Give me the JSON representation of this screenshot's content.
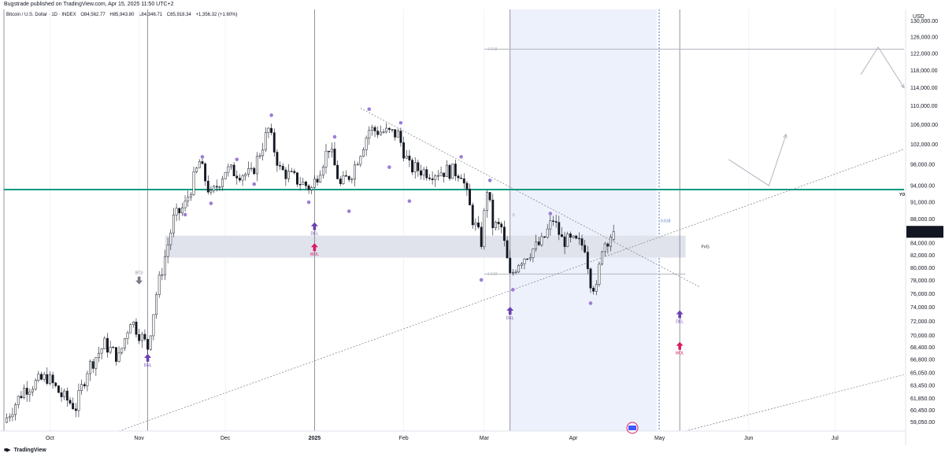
{
  "header": {
    "published": "Bugstrade published on TradingView.com, Apr 15, 2025 11:50 UTC+2"
  },
  "legend": {
    "symbol": "Bitcoin / U.S. Dollar · 1D · INDEX",
    "open": "O84,562.77",
    "high": "H85,943.80",
    "low": "L84,346.71",
    "close": "C85,918.34",
    "change": "+1,356.32 (+1.60%)"
  },
  "footer": {
    "brand": "TradingView"
  },
  "colors": {
    "up": "#ffffff",
    "down": "#131722",
    "candle_border": "#131722",
    "yo_line": "#089981",
    "fvg_zone": "#e0e3eb",
    "projection_box": "#edf1fb",
    "projection_line": "#4f83c7",
    "del_arrow": "#6c3fb3",
    "wol_arrow": "#d81b60",
    "swing_dot": "#9c7ed6",
    "bst_arrow": "#787b86",
    "dashed_line": "#787b86"
  },
  "chart_data": {
    "type": "candlestick",
    "symbol": "Bitcoin / U.S. Dollar",
    "interval": "1D",
    "y_axis": {
      "unit": "USD",
      "scale": "log",
      "ylim": [
        58000,
        133000
      ],
      "tick_labels": [
        {
          "value": 130000,
          "label": "130,000.00"
        },
        {
          "value": 126000,
          "label": "126,000.00"
        },
        {
          "value": 122000,
          "label": "122,000.00"
        },
        {
          "value": 118000,
          "label": "118,000.00"
        },
        {
          "value": 114000,
          "label": "114,000.00"
        },
        {
          "value": 110000,
          "label": "110,000.00"
        },
        {
          "value": 106000,
          "label": "106,000.00"
        },
        {
          "value": 102000,
          "label": "102,000.00"
        },
        {
          "value": 98000,
          "label": "98,000.00"
        },
        {
          "value": 94000,
          "label": "94,000.00"
        },
        {
          "value": 91000,
          "label": "91,000.00"
        },
        {
          "value": 88000,
          "label": "88,000.00"
        },
        {
          "value": 84000,
          "label": "84,000.00"
        },
        {
          "value": 82000,
          "label": "82,000.00"
        },
        {
          "value": 80000,
          "label": "80,000.00"
        },
        {
          "value": 78000,
          "label": "78,000.00"
        },
        {
          "value": 76000,
          "label": "76,000.00"
        },
        {
          "value": 74000,
          "label": "74,000.00"
        },
        {
          "value": 72000,
          "label": "72,000.00"
        },
        {
          "value": 70000,
          "label": "70,000.00"
        },
        {
          "value": 68400,
          "label": "68,400.00"
        },
        {
          "value": 66800,
          "label": "66,800.00"
        },
        {
          "value": 65050,
          "label": "65,050.00"
        },
        {
          "value": 63450,
          "label": "63,450.00"
        },
        {
          "value": 61850,
          "label": "61,850.00"
        },
        {
          "value": 60450,
          "label": "60,450.00"
        },
        {
          "value": 59050,
          "label": "59,050.00"
        }
      ]
    },
    "x_axis": {
      "xlim": [
        "2024-09-15",
        "2025-07-25"
      ],
      "tick_labels": [
        {
          "date": "2024-10-01",
          "label": "Oct",
          "bold": false
        },
        {
          "date": "2024-11-01",
          "label": "Nov",
          "bold": false
        },
        {
          "date": "2024-12-01",
          "label": "Dec",
          "bold": false
        },
        {
          "date": "2025-01-01",
          "label": "2025",
          "bold": true
        },
        {
          "date": "2025-02-01",
          "label": "Feb",
          "bold": false
        },
        {
          "date": "2025-03-01",
          "label": "Mar",
          "bold": false
        },
        {
          "date": "2025-04-01",
          "label": "Apr",
          "bold": false
        },
        {
          "date": "2025-05-01",
          "label": "May",
          "bold": false
        },
        {
          "date": "2025-06-01",
          "label": "Jun",
          "bold": false
        },
        {
          "date": "2025-07-01",
          "label": "Jul",
          "bold": false
        }
      ]
    },
    "price_anchors": [
      {
        "date": "2024-09-15",
        "price": 59000
      },
      {
        "date": "2024-09-22",
        "price": 63000
      },
      {
        "date": "2024-09-30",
        "price": 64500
      },
      {
        "date": "2024-10-05",
        "price": 62200
      },
      {
        "date": "2024-10-10",
        "price": 60800
      },
      {
        "date": "2024-10-14",
        "price": 65500
      },
      {
        "date": "2024-10-20",
        "price": 68800
      },
      {
        "date": "2024-10-25",
        "price": 67000
      },
      {
        "date": "2024-10-29",
        "price": 72300
      },
      {
        "date": "2024-11-04",
        "price": 68400
      },
      {
        "date": "2024-11-07",
        "price": 76000
      },
      {
        "date": "2024-11-13",
        "price": 88000
      },
      {
        "date": "2024-11-17",
        "price": 90500
      },
      {
        "date": "2024-11-22",
        "price": 98500
      },
      {
        "date": "2024-11-26",
        "price": 92000
      },
      {
        "date": "2024-12-01",
        "price": 97000
      },
      {
        "date": "2024-12-05",
        "price": 96500
      },
      {
        "date": "2024-12-10",
        "price": 96000
      },
      {
        "date": "2024-12-16",
        "price": 105000
      },
      {
        "date": "2024-12-20",
        "price": 97000
      },
      {
        "date": "2024-12-26",
        "price": 95000
      },
      {
        "date": "2024-12-31",
        "price": 93500
      },
      {
        "date": "2025-01-06",
        "price": 101500
      },
      {
        "date": "2025-01-10",
        "price": 94000
      },
      {
        "date": "2025-01-14",
        "price": 96500
      },
      {
        "date": "2025-01-20",
        "price": 105000
      },
      {
        "date": "2025-01-25",
        "price": 104500
      },
      {
        "date": "2025-01-30",
        "price": 104000
      },
      {
        "date": "2025-02-03",
        "price": 97500
      },
      {
        "date": "2025-02-10",
        "price": 96500
      },
      {
        "date": "2025-02-16",
        "price": 96800
      },
      {
        "date": "2025-02-21",
        "price": 96500
      },
      {
        "date": "2025-02-25",
        "price": 88000
      },
      {
        "date": "2025-02-28",
        "price": 84200
      },
      {
        "date": "2025-03-02",
        "price": 93500
      },
      {
        "date": "2025-03-04",
        "price": 87000
      },
      {
        "date": "2025-03-07",
        "price": 86500
      },
      {
        "date": "2025-03-10",
        "price": 78500
      },
      {
        "date": "2025-03-13",
        "price": 81000
      },
      {
        "date": "2025-03-18",
        "price": 83000
      },
      {
        "date": "2025-03-21",
        "price": 84000
      },
      {
        "date": "2025-03-25",
        "price": 88000
      },
      {
        "date": "2025-03-28",
        "price": 84500
      },
      {
        "date": "2025-04-02",
        "price": 84000
      },
      {
        "date": "2025-04-05",
        "price": 83500
      },
      {
        "date": "2025-04-07",
        "price": 78000
      },
      {
        "date": "2025-04-09",
        "price": 76500
      },
      {
        "date": "2025-04-11",
        "price": 83500
      },
      {
        "date": "2025-04-15",
        "price": 85918
      }
    ],
    "last_price": {
      "label": "85,918.34",
      "countdown": "14:09:41",
      "value": 85918.34
    },
    "horizontal_levels": [
      {
        "name": "YO",
        "label": "YO",
        "value": 93300,
        "from": "2024-09-15",
        "to": "2025-07-25"
      },
      {
        "name": "upper-fib",
        "label": "1.618",
        "value": 123000,
        "from": "2025-03-01",
        "to": "2025-07-25"
      },
      {
        "name": "lower-fib",
        "label": "1.618",
        "value": 79000,
        "from": "2025-03-01",
        "to": "2025-05-10"
      }
    ],
    "zones": [
      {
        "name": "fvg",
        "label": "FVG",
        "from": "2024-11-10",
        "to": "2025-05-10",
        "top": 85200,
        "bottom": 81600
      }
    ],
    "projection_box": {
      "from": "2025-03-10",
      "to": "2025-04-30",
      "bottom": 58000,
      "top": 133000,
      "label": "0.618",
      "label_value": 87500,
      "zero_label": "0",
      "zero_value": 88500
    },
    "vertical_lines": [
      {
        "date": "2024-09-15",
        "color": "#787b86"
      },
      {
        "date": "2024-11-04",
        "color": "#787b86"
      },
      {
        "date": "2025-01-01",
        "color": "#787b86"
      },
      {
        "date": "2025-03-10",
        "color": "#787b86"
      },
      {
        "date": "2025-05-08",
        "color": "#787b86"
      }
    ],
    "trend_lines": [
      {
        "name": "rising-trendline",
        "from": {
          "date": "2024-10-25",
          "price": 58000
        },
        "to": {
          "date": "2025-07-25",
          "price": 101000
        }
      },
      {
        "name": "falling-trendline",
        "from": {
          "date": "2025-01-17",
          "price": 109500
        },
        "to": {
          "date": "2025-05-15",
          "price": 77000
        }
      },
      {
        "name": "lower-channel",
        "from": {
          "date": "2025-05-10",
          "price": 58000
        },
        "to": {
          "date": "2025-07-25",
          "price": 64800
        }
      }
    ],
    "scenario_paths": [
      {
        "name": "scenario-low",
        "points": [
          {
            "date": "2025-05-25",
            "price": 99000
          },
          {
            "date": "2025-06-08",
            "price": 94000
          },
          {
            "date": "2025-06-14",
            "price": 104000
          }
        ]
      },
      {
        "name": "scenario-high",
        "points": [
          {
            "date": "2025-07-10",
            "price": 117000
          },
          {
            "date": "2025-07-16",
            "price": 123500
          },
          {
            "date": "2025-07-25",
            "price": 114000
          }
        ]
      }
    ],
    "swing_points": [
      {
        "date": "2024-11-23",
        "price": 99500
      },
      {
        "date": "2024-11-17",
        "price": 88800
      },
      {
        "date": "2024-11-26",
        "price": 90800
      },
      {
        "date": "2024-12-05",
        "price": 99000
      },
      {
        "date": "2024-12-11",
        "price": 94300
      },
      {
        "date": "2024-12-17",
        "price": 108000
      },
      {
        "date": "2024-12-30",
        "price": 91000
      },
      {
        "date": "2025-01-08",
        "price": 103500
      },
      {
        "date": "2025-01-13",
        "price": 89400
      },
      {
        "date": "2025-01-20",
        "price": 109300
      },
      {
        "date": "2025-01-27",
        "price": 97500
      },
      {
        "date": "2025-01-31",
        "price": 106400
      },
      {
        "date": "2025-02-03",
        "price": 91200
      },
      {
        "date": "2025-02-21",
        "price": 99500
      },
      {
        "date": "2025-02-28",
        "price": 78100
      },
      {
        "date": "2025-03-03",
        "price": 95000
      },
      {
        "date": "2025-03-11",
        "price": 76600
      },
      {
        "date": "2025-03-24",
        "price": 89000
      },
      {
        "date": "2025-04-07",
        "price": 74600
      }
    ],
    "markers": [
      {
        "name": "bst-marker",
        "label": "BT3",
        "kind": "arrow-down",
        "color": "#787b86",
        "date": "2024-11-01",
        "price": 78000
      },
      {
        "name": "del-marker-nov",
        "label": "DEL",
        "kind": "arrow-up",
        "color": "#6c3fb3",
        "date": "2024-11-04",
        "price": 67000
      },
      {
        "name": "del-marker-jan",
        "label": "DEL",
        "kind": "arrow-up",
        "color": "#6c3fb3",
        "date": "2025-01-01",
        "price": 86800
      },
      {
        "name": "wol-marker-jan",
        "label": "WOL",
        "kind": "arrow-up",
        "color": "#d81b60",
        "date": "2025-01-01",
        "price": 83300
      },
      {
        "name": "del-marker-mar",
        "label": "DEL",
        "kind": "arrow-up",
        "color": "#6c3fb3",
        "date": "2025-03-10",
        "price": 73500
      },
      {
        "name": "del-marker-may",
        "label": "DEL",
        "kind": "arrow-up",
        "color": "#6c3fb3",
        "date": "2025-05-08",
        "price": 73000
      },
      {
        "name": "wol-marker-may",
        "label": "WOL",
        "kind": "arrow-up",
        "color": "#d81b60",
        "date": "2025-05-08",
        "price": 68600
      }
    ]
  }
}
